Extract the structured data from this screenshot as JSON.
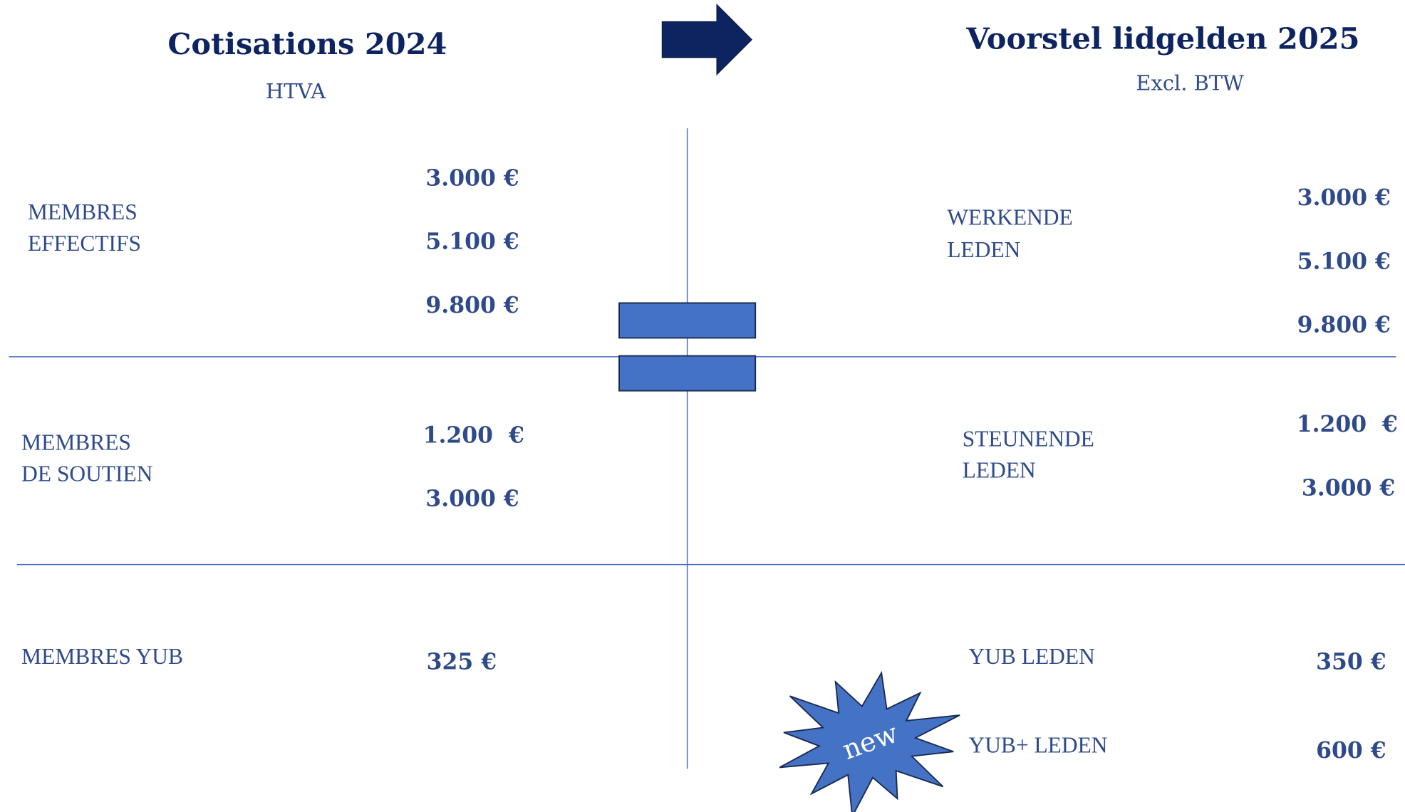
{
  "left": {
    "title": "Cotisations 2024",
    "subtitle": "HTVA",
    "rows": [
      {
        "label": [
          "MEMBRES",
          "EFFECTIFS"
        ],
        "prices": [
          "3.000 €",
          "5.100 €",
          "9.800 €"
        ]
      },
      {
        "label": [
          "MEMBRES",
          "DE SOUTIEN"
        ],
        "prices": [
          "1.200  €",
          "3.000 €"
        ]
      },
      {
        "label": [
          "MEMBRES YUB"
        ],
        "prices": [
          "325 €"
        ]
      }
    ]
  },
  "right": {
    "title": "Voorstel lidgelden 2025",
    "subtitle": "Excl. BTW",
    "rows": [
      {
        "label": [
          "WERKENDE",
          "LEDEN"
        ],
        "prices": [
          "3.000 €",
          "5.100 €",
          "9.800 €"
        ]
      },
      {
        "label": [
          "STEUNENDE",
          "LEDEN"
        ],
        "prices": [
          "1.200  €",
          "3.000 €"
        ]
      },
      {
        "label": [
          "YUB LEDEN"
        ],
        "prices": [
          "350 €"
        ]
      },
      {
        "label": [
          "YUB+ LEDEN"
        ],
        "prices": [
          "600 €"
        ]
      }
    ]
  },
  "badge": "new"
}
